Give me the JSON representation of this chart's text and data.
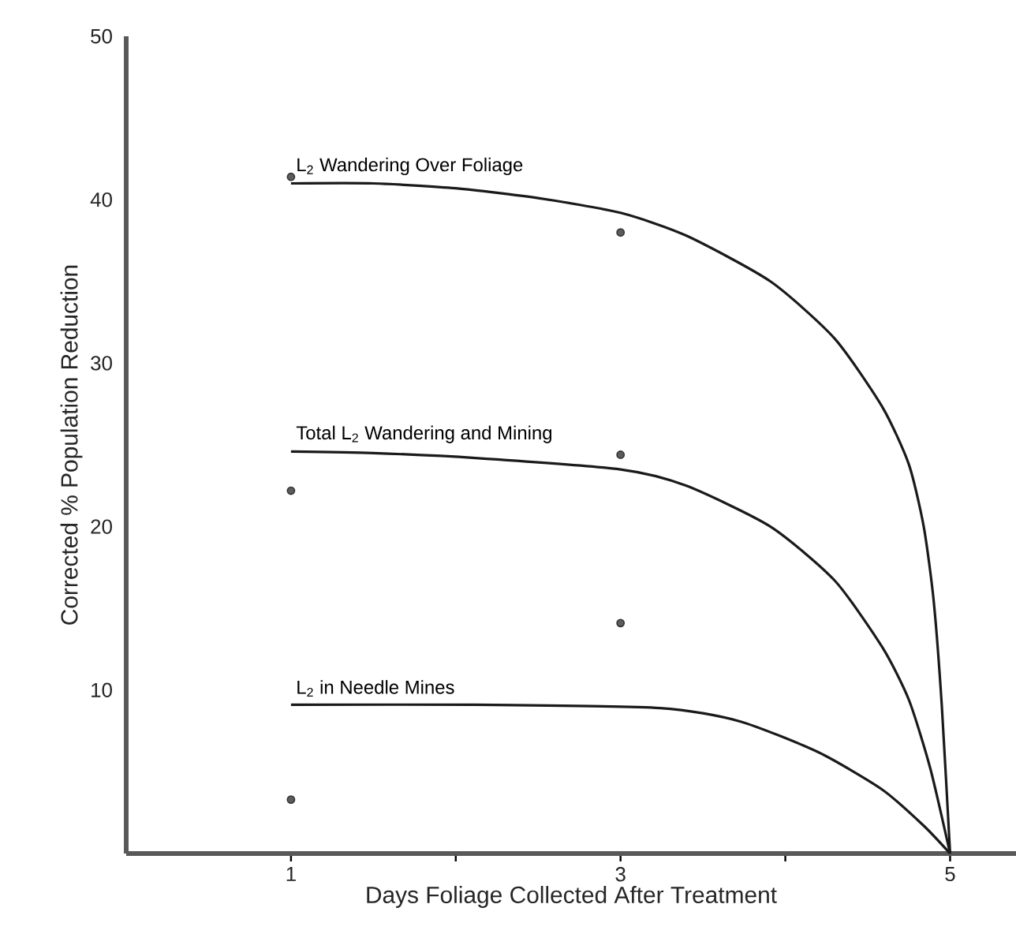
{
  "chart_data": {
    "type": "line",
    "xlabel": "Days Foliage Collected After Treatment",
    "ylabel": "Corrected % Population Reduction",
    "xlim": [
      0,
      5.4
    ],
    "ylim": [
      0,
      50
    ],
    "xticks": [
      1,
      {
        "value": 2,
        "label": null
      },
      3,
      {
        "value": 4,
        "label": null
      },
      5
    ],
    "yticks": [
      10,
      20,
      30,
      40,
      50
    ],
    "grid": false,
    "legend": false,
    "marker": "none",
    "line_style": "solid",
    "series": [
      {
        "name": "L$_{2}$ Wandering Over Foliage",
        "color": "#1a1a1a",
        "x": [
          1,
          1.5,
          2,
          2.5,
          3,
          3.4,
          3.91,
          4.3,
          4.59,
          4.75,
          4.84,
          4.9,
          4.95,
          5
        ],
        "values": [
          41.0,
          41.0,
          40.7,
          40.1,
          39.2,
          37.8,
          35.0,
          31.5,
          27.3,
          23.8,
          20.0,
          15.5,
          9.0,
          0
        ]
      },
      {
        "name": "Total L$_{2}$ Wandering and Mining",
        "color": "#1a1a1a",
        "x": [
          1,
          1.5,
          2.12,
          3,
          3.4,
          3.91,
          4.3,
          4.59,
          4.75,
          4.88,
          5
        ],
        "values": [
          24.6,
          24.5,
          24.2,
          23.5,
          22.5,
          20.0,
          16.7,
          12.6,
          9.4,
          5.2,
          0
        ]
      },
      {
        "name": "L$_{2}$ in Needle Mines",
        "color": "#1a1a1a",
        "x": [
          1,
          2.12,
          3.24,
          3.72,
          4.2,
          4.59,
          4.84,
          5
        ],
        "values": [
          9.1,
          9.1,
          8.9,
          8.1,
          6.2,
          3.9,
          1.7,
          0
        ]
      },
      {
        "type": "scatter",
        "marker": "circle",
        "color": "#333333",
        "x": [
          1,
          1,
          1,
          3,
          3,
          3
        ],
        "values": [
          41.4,
          22.2,
          3.3,
          38.0,
          24.4,
          14.1
        ]
      }
    ]
  }
}
